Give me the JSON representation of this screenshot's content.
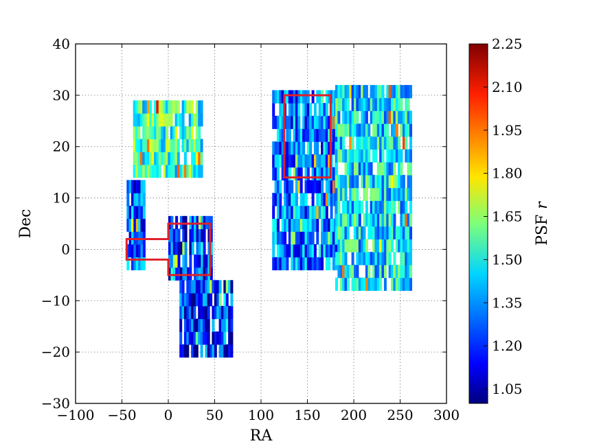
{
  "chart_data": {
    "type": "heatmap",
    "title": "",
    "xlabel": "RA",
    "ylabel": "Dec",
    "xlim": [
      -100,
      300
    ],
    "ylim": [
      -30,
      40
    ],
    "x_ticks": [
      -100,
      -50,
      0,
      50,
      100,
      150,
      200,
      250,
      300
    ],
    "y_ticks": [
      -30,
      -20,
      -10,
      0,
      10,
      20,
      30,
      40
    ],
    "x_tick_labels": [
      "−100",
      "−50",
      "0",
      "50",
      "100",
      "150",
      "200",
      "250",
      "300"
    ],
    "y_tick_labels": [
      "−30",
      "−20",
      "−10",
      "0",
      "10",
      "20",
      "30",
      "40"
    ],
    "grid": true,
    "colorbar": {
      "label_main": "PSF",
      "label_var": "r",
      "range": [
        1.0,
        2.25
      ],
      "colormap": "jet",
      "ticks": [
        1.05,
        1.2,
        1.35,
        1.5,
        1.65,
        1.8,
        1.95,
        2.1,
        2.25
      ],
      "tick_labels": [
        "1.05",
        "1.20",
        "1.35",
        "1.50",
        "1.65",
        "1.80",
        "1.95",
        "2.10",
        "2.25"
      ]
    },
    "highlight_color": "#e0202a",
    "highlight_regions": [
      {
        "name": "stripe-82-west",
        "polygon": [
          [
            -45,
            2
          ],
          [
            0,
            2
          ],
          [
            0,
            5
          ],
          [
            45,
            5
          ],
          [
            45,
            -5
          ],
          [
            0,
            -5
          ],
          [
            0,
            -2
          ],
          [
            -45,
            -2
          ]
        ]
      },
      {
        "name": "north-field",
        "polygon": [
          [
            125,
            14
          ],
          [
            175,
            14
          ],
          [
            175,
            30
          ],
          [
            125,
            30
          ]
        ]
      }
    ],
    "coverage_regions": [
      {
        "name": "west-upper",
        "ra": [
          -38,
          35
        ],
        "dec": [
          14,
          28
        ],
        "psf_mean": 1.55
      },
      {
        "name": "west-left-strip",
        "ra": [
          -45,
          -25
        ],
        "dec": [
          -4,
          12
        ],
        "psf_mean": 1.25
      },
      {
        "name": "stripe-east",
        "ra": [
          0,
          47
        ],
        "dec": [
          -6,
          6
        ],
        "psf_mean": 1.22
      },
      {
        "name": "south-wedge",
        "ra": [
          12,
          68
        ],
        "dec": [
          -21,
          -6
        ],
        "psf_mean": 1.2
      },
      {
        "name": "north-main",
        "ra": [
          112,
          180
        ],
        "dec": [
          -4,
          31
        ],
        "psf_mean": 1.3
      },
      {
        "name": "north-east",
        "ra": [
          180,
          262
        ],
        "dec": [
          -8,
          31
        ],
        "psf_mean": 1.45
      }
    ]
  }
}
